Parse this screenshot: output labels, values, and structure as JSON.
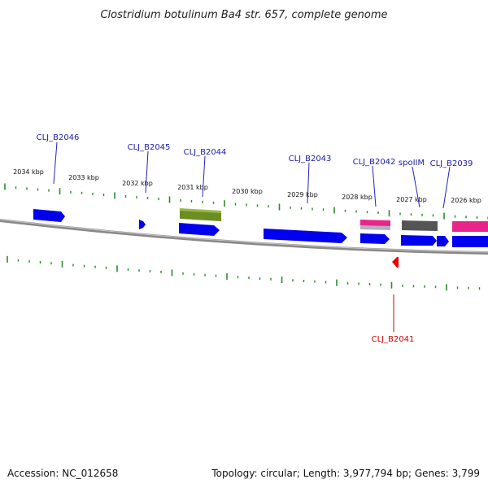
{
  "title": "Clostridium botulinum Ba4 str. 657, complete genome",
  "footer": {
    "accession": "Accession: NC_012658",
    "summary": "Topology: circular; Length: 3,977,794 bp; Genes: 3,799"
  },
  "colors": {
    "forward_gene": "#0000ee",
    "reverse_gene": "#ee0000",
    "tick": "#2a8a2a",
    "backbone": "#8a8a8a",
    "label_forward": "#1a1aaa",
    "label_reverse": "#cc0000",
    "rrna_olive": "#6b8e23",
    "pink": "#e8268a",
    "dark_gray": "#555555"
  },
  "kbp_labels": [
    "2034 kbp",
    "2033 kbp",
    "2032 kbp",
    "2031 kbp",
    "2030 kbp",
    "2029 kbp",
    "2028 kbp",
    "2027 kbp",
    "2026 kbp"
  ],
  "gene_labels": [
    {
      "text": "CLJ_B2046",
      "strand": "forward"
    },
    {
      "text": "CLJ_B2045",
      "strand": "forward"
    },
    {
      "text": "CLJ_B2044",
      "strand": "forward"
    },
    {
      "text": "CLJ_B2043",
      "strand": "forward"
    },
    {
      "text": "CLJ_B2042",
      "strand": "forward"
    },
    {
      "text": "spoIIM",
      "strand": "forward"
    },
    {
      "text": "CLJ_B2039",
      "strand": "forward"
    },
    {
      "text": "CLJ_B2041",
      "strand": "reverse"
    }
  ]
}
